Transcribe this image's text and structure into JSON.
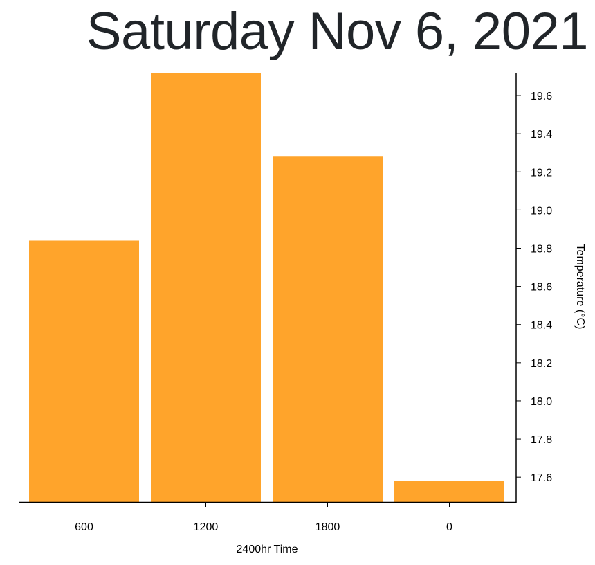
{
  "header": {
    "title": "Saturday Nov 6, 2021"
  },
  "colors": {
    "bar": "#ffa42b",
    "axis": "#000000",
    "title": "#212529"
  },
  "chart_data": {
    "type": "bar",
    "title": "Saturday Nov 6, 2021",
    "xlabel": "2400hr Time",
    "ylabel": "Temperature (°C)",
    "categories": [
      "600",
      "1200",
      "1800",
      "0"
    ],
    "values": [
      18.84,
      19.72,
      19.28,
      17.58
    ],
    "ylim": [
      17.47,
      19.72
    ],
    "yticks": [
      17.6,
      17.8,
      18.0,
      18.2,
      18.4,
      18.6,
      18.8,
      19.0,
      19.2,
      19.4,
      19.6
    ],
    "ytick_labels": [
      "17.6",
      "17.8",
      "18.0",
      "18.2",
      "18.4",
      "18.6",
      "18.8",
      "19.0",
      "19.2",
      "19.4",
      "19.6"
    ],
    "y_axis_side": "right",
    "grid": false,
    "legend": "none"
  }
}
